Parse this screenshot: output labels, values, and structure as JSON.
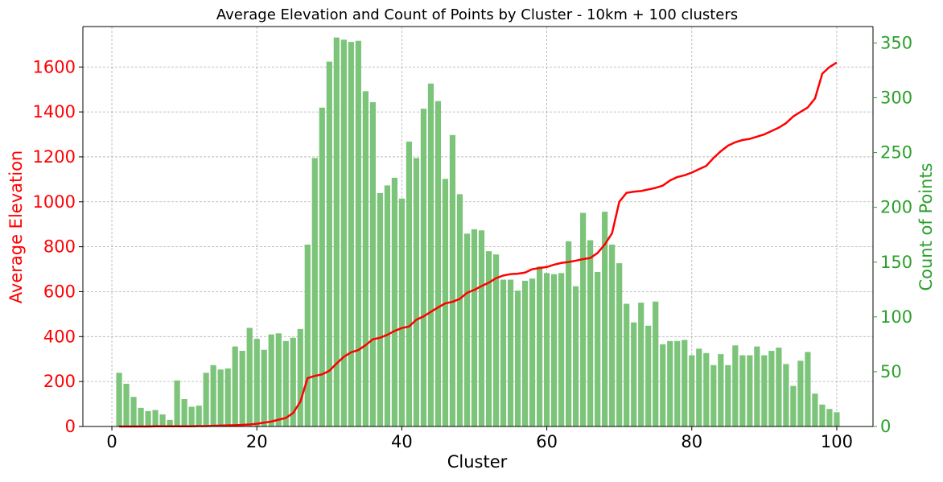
{
  "chart_data": {
    "type": "bar",
    "title": "Average Elevation and Count of Points by Cluster - 10km + 100 clusters",
    "xlabel": "Cluster",
    "ylabel_left": "Average Elevation",
    "ylabel_right": "Count of Points",
    "xlim": [
      -4,
      105
    ],
    "ylim_left": [
      0,
      1780
    ],
    "ylim_right": [
      0,
      365
    ],
    "x_ticks": [
      0,
      20,
      40,
      60,
      80,
      100
    ],
    "y_left_ticks": [
      0,
      200,
      400,
      600,
      800,
      1000,
      1200,
      1400,
      1600
    ],
    "y_right_ticks": [
      0,
      50,
      100,
      150,
      200,
      250,
      300,
      350
    ],
    "grid": true,
    "x": [
      1,
      2,
      3,
      4,
      5,
      6,
      7,
      8,
      9,
      10,
      11,
      12,
      13,
      14,
      15,
      16,
      17,
      18,
      19,
      20,
      21,
      22,
      23,
      24,
      25,
      26,
      27,
      28,
      29,
      30,
      31,
      32,
      33,
      34,
      35,
      36,
      37,
      38,
      39,
      40,
      41,
      42,
      43,
      44,
      45,
      46,
      47,
      48,
      49,
      50,
      51,
      52,
      53,
      54,
      55,
      56,
      57,
      58,
      59,
      60,
      61,
      62,
      63,
      64,
      65,
      66,
      67,
      68,
      69,
      70,
      71,
      72,
      73,
      74,
      75,
      76,
      77,
      78,
      79,
      80,
      81,
      82,
      83,
      84,
      85,
      86,
      87,
      88,
      89,
      90,
      91,
      92,
      93,
      94,
      95,
      96,
      97,
      98,
      99,
      100
    ],
    "series": [
      {
        "name": "Count of Points",
        "kind": "bar",
        "axis": "right",
        "color": "#7cc47a",
        "values": [
          49,
          39,
          27,
          17,
          14,
          15,
          11,
          6,
          42,
          25,
          18,
          19,
          49,
          56,
          52,
          53,
          73,
          69,
          90,
          80,
          70,
          84,
          85,
          78,
          81,
          89,
          166,
          245,
          291,
          333,
          355,
          353,
          351,
          352,
          306,
          296,
          213,
          220,
          227,
          208,
          260,
          245,
          290,
          313,
          297,
          226,
          266,
          212,
          176,
          180,
          179,
          160,
          157,
          134,
          134,
          124,
          133,
          135,
          146,
          140,
          139,
          140,
          169,
          128,
          195,
          170,
          141,
          196,
          166,
          149,
          112,
          95,
          113,
          92,
          114,
          75,
          78,
          78,
          79,
          65,
          71,
          67,
          56,
          66,
          56,
          74,
          65,
          65,
          73,
          65,
          69,
          72,
          57,
          37,
          60,
          68,
          30,
          20,
          16,
          13
        ]
      },
      {
        "name": "Average Elevation",
        "kind": "line",
        "axis": "left",
        "color": "#ff0000",
        "values": [
          0,
          0,
          0,
          0,
          0,
          1,
          1,
          1,
          1,
          1,
          1,
          2,
          2,
          3,
          4,
          5,
          6,
          7,
          9,
          12,
          17,
          22,
          30,
          38,
          60,
          110,
          215,
          225,
          232,
          248,
          280,
          310,
          330,
          340,
          362,
          388,
          395,
          408,
          425,
          438,
          445,
          475,
          490,
          510,
          530,
          548,
          555,
          568,
          595,
          608,
          625,
          640,
          660,
          672,
          678,
          680,
          685,
          700,
          705,
          710,
          720,
          728,
          732,
          738,
          745,
          750,
          772,
          810,
          860,
          1000,
          1040,
          1045,
          1048,
          1055,
          1062,
          1072,
          1095,
          1110,
          1118,
          1130,
          1145,
          1160,
          1195,
          1225,
          1250,
          1265,
          1275,
          1280,
          1290,
          1300,
          1315,
          1330,
          1350,
          1380,
          1400,
          1420,
          1460,
          1570,
          1600,
          1620
        ]
      }
    ]
  }
}
